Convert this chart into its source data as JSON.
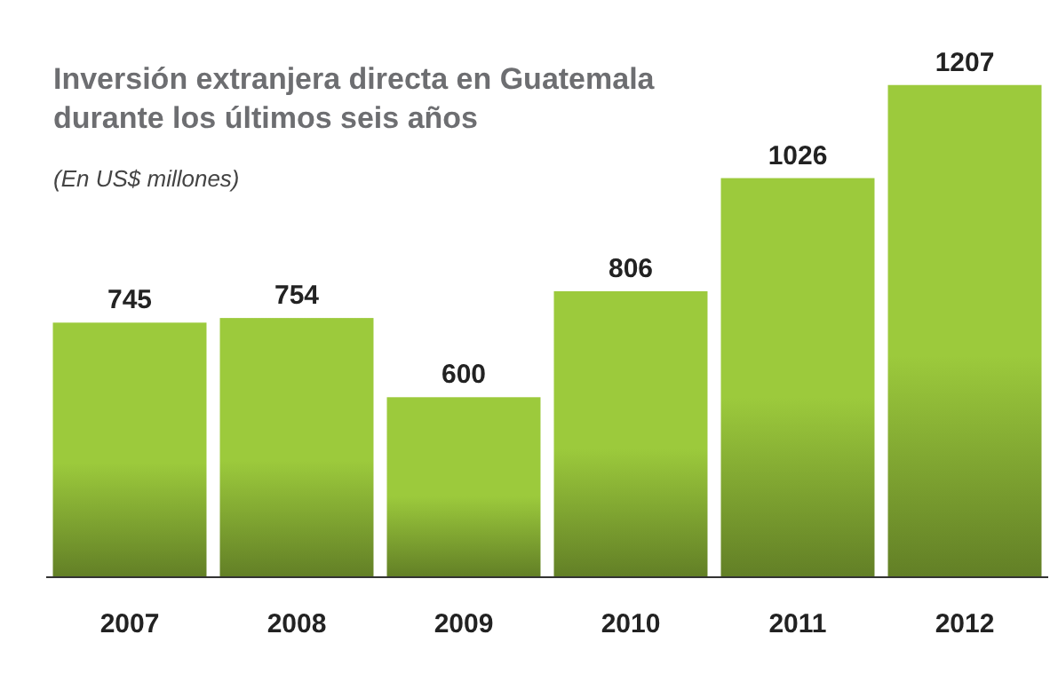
{
  "chart_data": {
    "type": "bar",
    "title": "Inversión extranjera directa en Guatemala\ndurante los últimos seis años",
    "subtitle": "(En US$ millones)",
    "categories": [
      "2007",
      "2008",
      "2009",
      "2010",
      "2011",
      "2012"
    ],
    "values": [
      745,
      754,
      600,
      806,
      1026,
      1207
    ],
    "color": "#9cca3c",
    "ylim": [
      250,
      1210
    ],
    "data_labels": true
  }
}
